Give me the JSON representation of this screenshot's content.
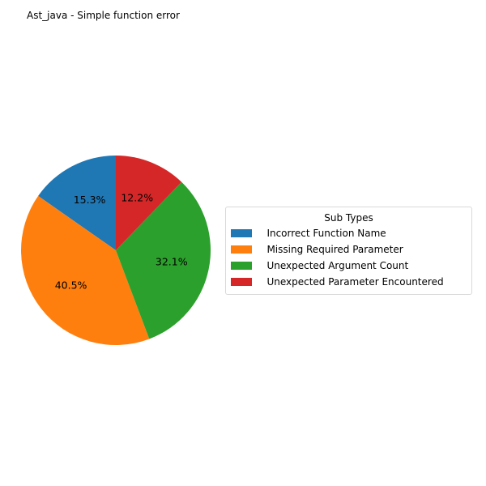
{
  "chart_data": {
    "type": "pie",
    "title": "Ast_java - Simple function error",
    "legend_title": "Sub Types",
    "legend_placement": "right",
    "start_angle_deg": 90,
    "counterclockwise": true,
    "slices": [
      {
        "label": "   Incorrect Function Name",
        "value": 15.3,
        "pct_label": "15.3%",
        "color": "#1f77b4"
      },
      {
        "label": "   Missing Required Parameter",
        "value": 40.5,
        "pct_label": "40.5%",
        "color": "#ff7f0e"
      },
      {
        "label": "   Unexpected Argument Count",
        "value": 32.1,
        "pct_label": "32.1%",
        "color": "#2ca02c"
      },
      {
        "label": "   Unexpected Parameter Encountered",
        "value": 12.2,
        "pct_label": "12.2%",
        "color": "#d62728"
      }
    ]
  }
}
